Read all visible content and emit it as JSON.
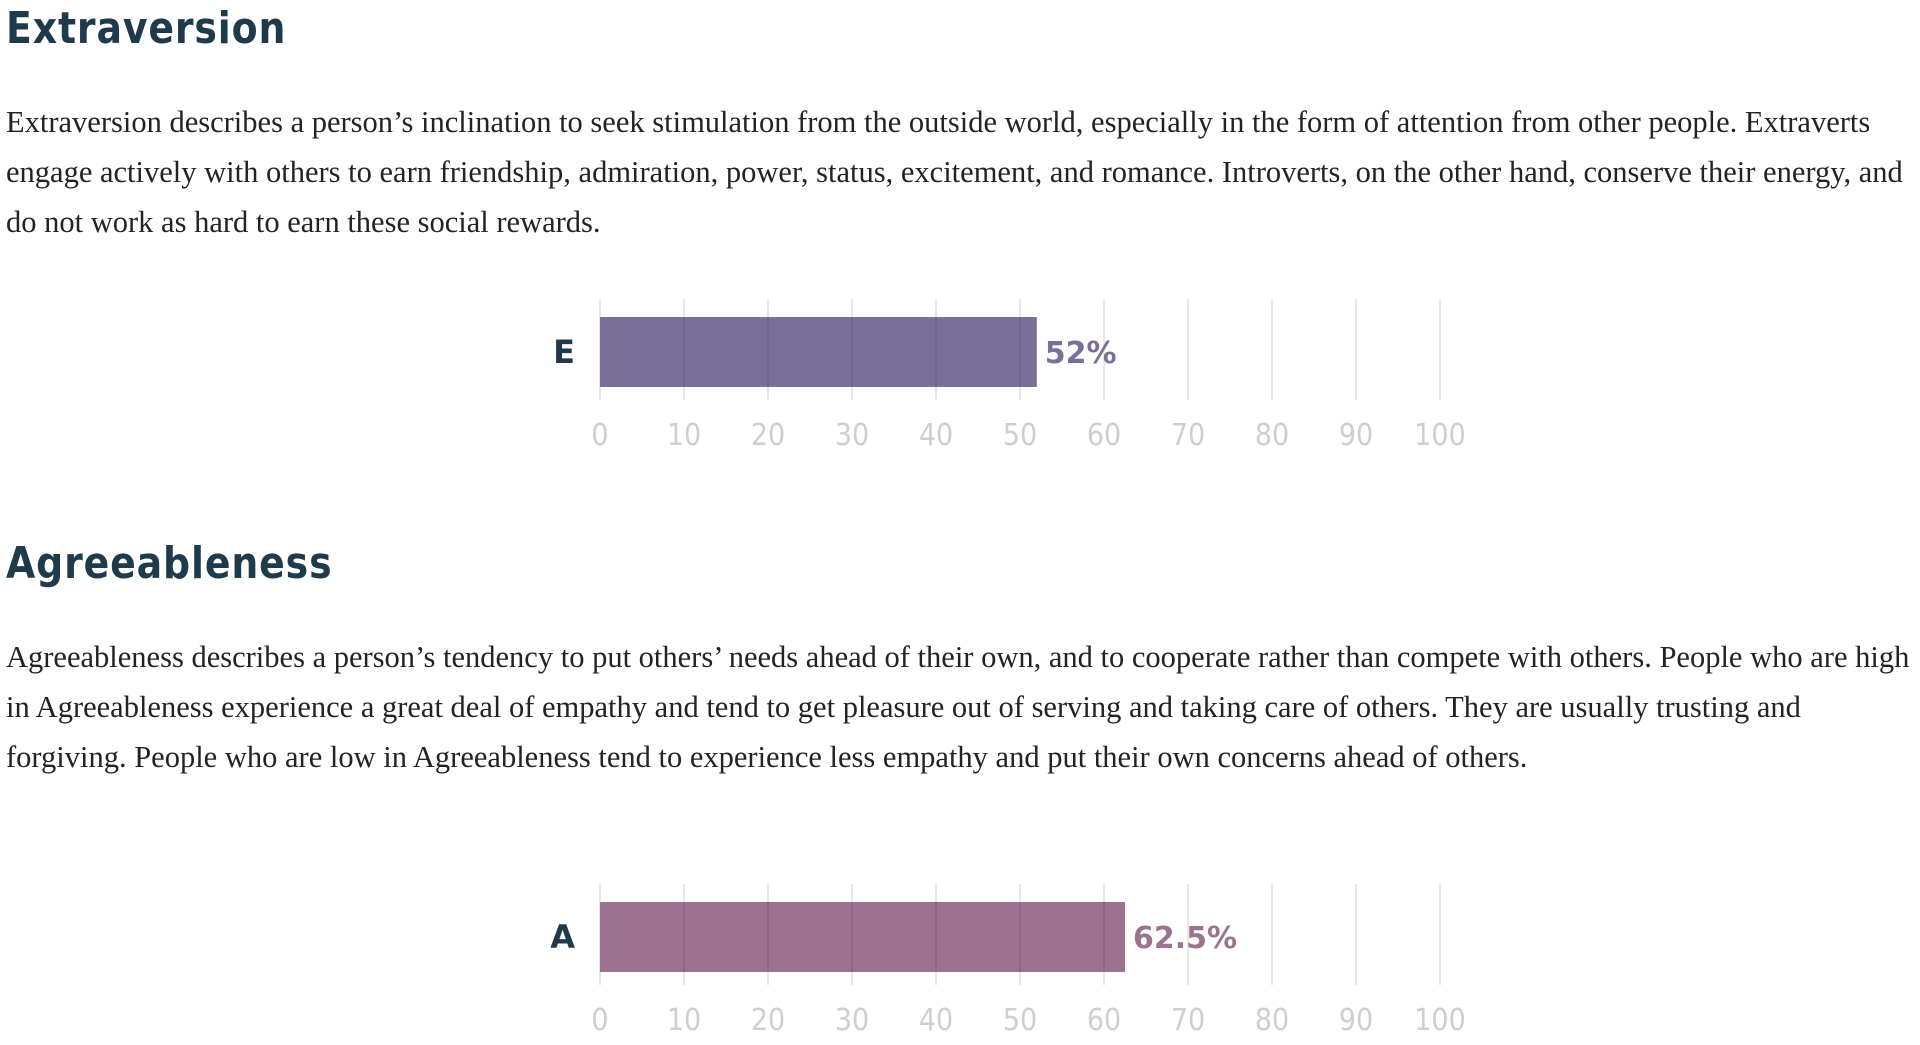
{
  "traits": [
    {
      "title": "Extraversion",
      "description": "Extraversion describes a person’s inclination to seek stimulation from the outside world, especially in the form of attention from other people. Extraverts engage actively with others to earn friendship, admiration, power, status, excitement, and romance. Introverts, on the other hand, conserve their energy, and do not work as hard to earn these social rewards."
    },
    {
      "title": "Agreeableness",
      "description": "Agreeableness describes a person’s tendency to put others’ needs ahead of their own, and to cooperate rather than compete with others. People who are high in Agreeableness experience a great deal of empathy and tend to get pleasure out of serving and taking care of others. They are usually trusting and forgiving. People who are low in Agreeableness tend to experience less empathy and put their own concerns ahead of others."
    }
  ],
  "chart_data": [
    {
      "type": "bar",
      "orientation": "horizontal",
      "categories": [
        "E"
      ],
      "values": [
        52
      ],
      "value_labels": [
        "52%"
      ],
      "xlim": [
        0,
        100
      ],
      "xticks": [
        0,
        10,
        20,
        30,
        40,
        50,
        60,
        70,
        80,
        90,
        100
      ],
      "grid": true,
      "color": "#7a6f99"
    },
    {
      "type": "bar",
      "orientation": "horizontal",
      "categories": [
        "A"
      ],
      "values": [
        62.5
      ],
      "value_labels": [
        "62.5%"
      ],
      "xlim": [
        0,
        100
      ],
      "xticks": [
        0,
        10,
        20,
        30,
        40,
        50,
        60,
        70,
        80,
        90,
        100
      ],
      "grid": true,
      "color": "#9b7290"
    }
  ]
}
